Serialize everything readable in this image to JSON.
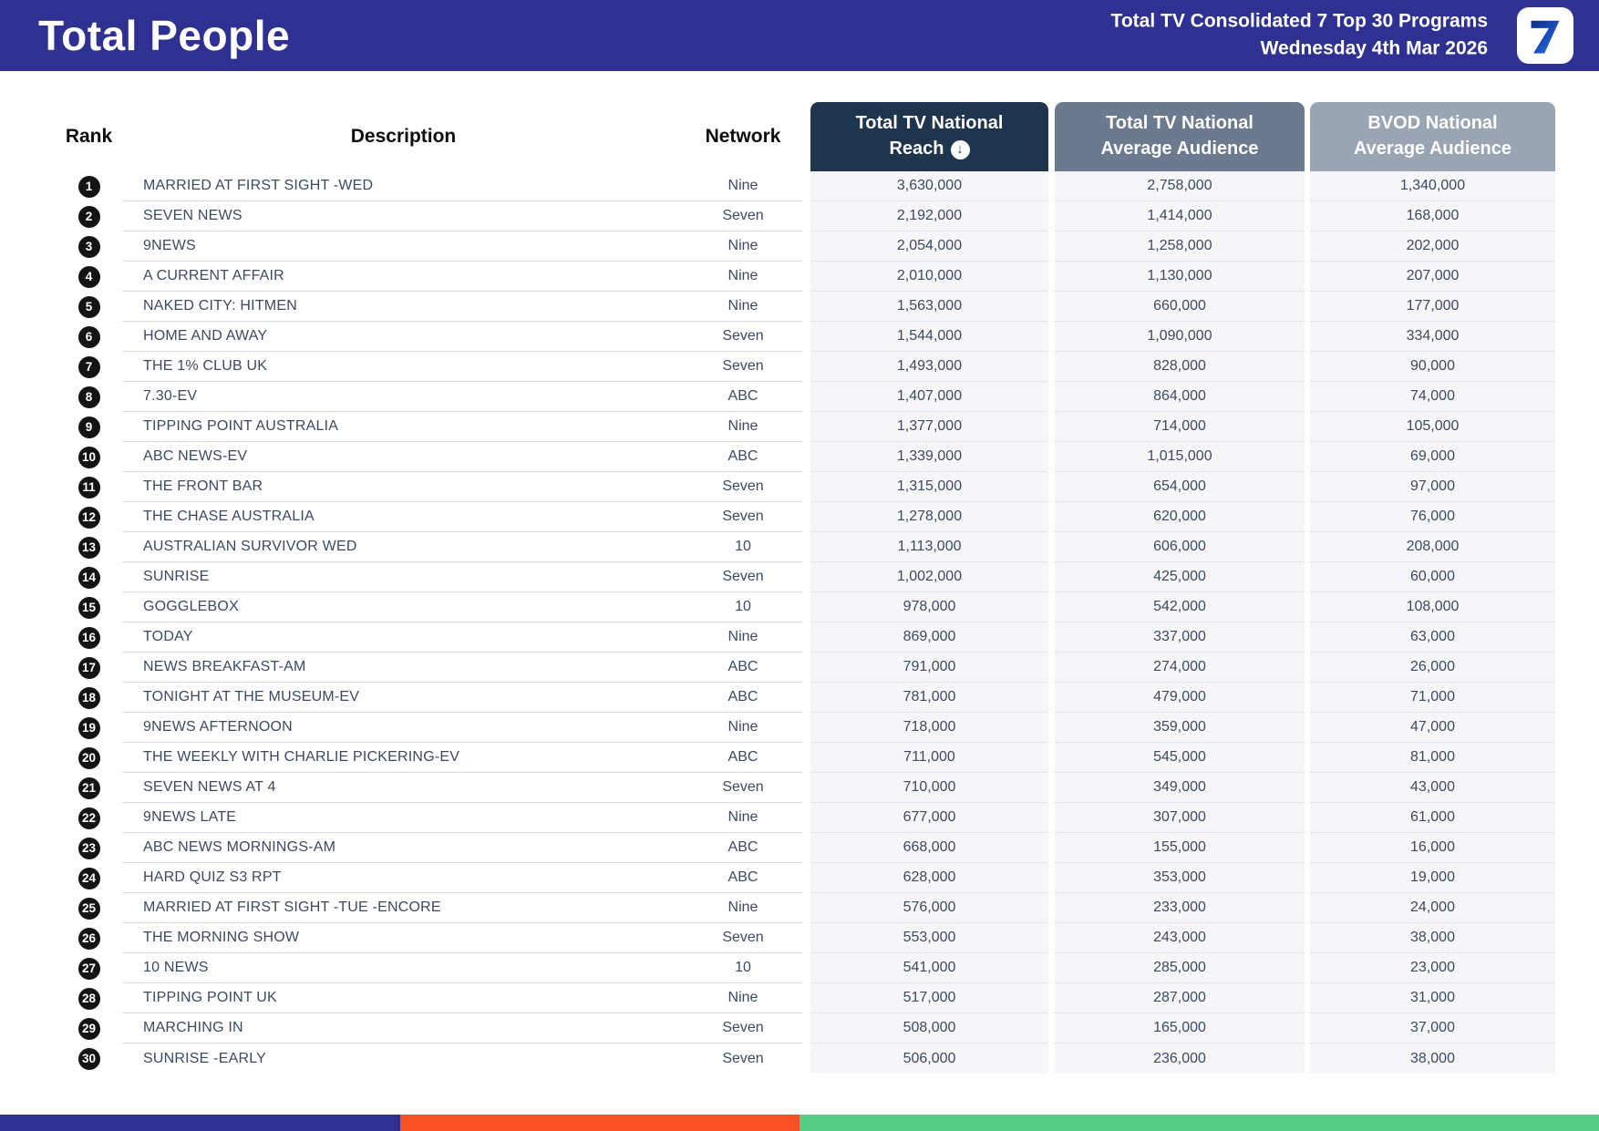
{
  "header": {
    "title": "Total People",
    "subtitle_line1": "Total TV Consolidated 7 Top 30 Programs",
    "subtitle_line2": "Wednesday 4th Mar 2026",
    "logo": "seven-network-7-logo"
  },
  "colors": {
    "banner_bg": "#2e3192",
    "reach_header_bg": "#1f344d",
    "avg_header_bg": "#6b7a8e",
    "bvod_header_bg": "#9aa5b4",
    "row_text": "#3c4a61",
    "rank_badge_bg": "#141414",
    "numeric_cell_bg": "#f6f6f8"
  },
  "table": {
    "columns": {
      "rank": "Rank",
      "description": "Description",
      "network": "Network",
      "reach_line1": "Total TV National",
      "reach_line2": "Reach",
      "reach_sort_icon": "circle-down-arrow",
      "avg_line1": "Total TV National",
      "avg_line2": "Average Audience",
      "bvod_line1": "BVOD National",
      "bvod_line2": "Average Audience"
    },
    "rows": [
      {
        "rank": "1",
        "description": "MARRIED AT FIRST SIGHT -WED",
        "network": "Nine",
        "reach": "3,630,000",
        "avg": "2,758,000",
        "bvod": "1,340,000"
      },
      {
        "rank": "2",
        "description": "SEVEN NEWS",
        "network": "Seven",
        "reach": "2,192,000",
        "avg": "1,414,000",
        "bvod": "168,000"
      },
      {
        "rank": "3",
        "description": "9NEWS",
        "network": "Nine",
        "reach": "2,054,000",
        "avg": "1,258,000",
        "bvod": "202,000"
      },
      {
        "rank": "4",
        "description": "A CURRENT AFFAIR",
        "network": "Nine",
        "reach": "2,010,000",
        "avg": "1,130,000",
        "bvod": "207,000"
      },
      {
        "rank": "5",
        "description": "NAKED CITY: HITMEN",
        "network": "Nine",
        "reach": "1,563,000",
        "avg": "660,000",
        "bvod": "177,000"
      },
      {
        "rank": "6",
        "description": "HOME AND AWAY",
        "network": "Seven",
        "reach": "1,544,000",
        "avg": "1,090,000",
        "bvod": "334,000"
      },
      {
        "rank": "7",
        "description": "THE 1% CLUB UK",
        "network": "Seven",
        "reach": "1,493,000",
        "avg": "828,000",
        "bvod": "90,000"
      },
      {
        "rank": "8",
        "description": "7.30-EV",
        "network": "ABC",
        "reach": "1,407,000",
        "avg": "864,000",
        "bvod": "74,000"
      },
      {
        "rank": "9",
        "description": "TIPPING POINT AUSTRALIA",
        "network": "Nine",
        "reach": "1,377,000",
        "avg": "714,000",
        "bvod": "105,000"
      },
      {
        "rank": "10",
        "description": "ABC NEWS-EV",
        "network": "ABC",
        "reach": "1,339,000",
        "avg": "1,015,000",
        "bvod": "69,000"
      },
      {
        "rank": "11",
        "description": "THE FRONT BAR",
        "network": "Seven",
        "reach": "1,315,000",
        "avg": "654,000",
        "bvod": "97,000"
      },
      {
        "rank": "12",
        "description": "THE CHASE AUSTRALIA",
        "network": "Seven",
        "reach": "1,278,000",
        "avg": "620,000",
        "bvod": "76,000"
      },
      {
        "rank": "13",
        "description": "AUSTRALIAN SURVIVOR WED",
        "network": "10",
        "reach": "1,113,000",
        "avg": "606,000",
        "bvod": "208,000"
      },
      {
        "rank": "14",
        "description": "SUNRISE",
        "network": "Seven",
        "reach": "1,002,000",
        "avg": "425,000",
        "bvod": "60,000"
      },
      {
        "rank": "15",
        "description": "GOGGLEBOX",
        "network": "10",
        "reach": "978,000",
        "avg": "542,000",
        "bvod": "108,000"
      },
      {
        "rank": "16",
        "description": "TODAY",
        "network": "Nine",
        "reach": "869,000",
        "avg": "337,000",
        "bvod": "63,000"
      },
      {
        "rank": "17",
        "description": "NEWS BREAKFAST-AM",
        "network": "ABC",
        "reach": "791,000",
        "avg": "274,000",
        "bvod": "26,000"
      },
      {
        "rank": "18",
        "description": "TONIGHT AT THE MUSEUM-EV",
        "network": "ABC",
        "reach": "781,000",
        "avg": "479,000",
        "bvod": "71,000"
      },
      {
        "rank": "19",
        "description": "9NEWS AFTERNOON",
        "network": "Nine",
        "reach": "718,000",
        "avg": "359,000",
        "bvod": "47,000"
      },
      {
        "rank": "20",
        "description": "THE WEEKLY WITH CHARLIE PICKERING-EV",
        "network": "ABC",
        "reach": "711,000",
        "avg": "545,000",
        "bvod": "81,000"
      },
      {
        "rank": "21",
        "description": "SEVEN NEWS AT 4",
        "network": "Seven",
        "reach": "710,000",
        "avg": "349,000",
        "bvod": "43,000"
      },
      {
        "rank": "22",
        "description": "9NEWS LATE",
        "network": "Nine",
        "reach": "677,000",
        "avg": "307,000",
        "bvod": "61,000"
      },
      {
        "rank": "23",
        "description": "ABC NEWS MORNINGS-AM",
        "network": "ABC",
        "reach": "668,000",
        "avg": "155,000",
        "bvod": "16,000"
      },
      {
        "rank": "24",
        "description": "HARD QUIZ S3 RPT",
        "network": "ABC",
        "reach": "628,000",
        "avg": "353,000",
        "bvod": "19,000"
      },
      {
        "rank": "25",
        "description": "MARRIED AT FIRST SIGHT -TUE -ENCORE",
        "network": "Nine",
        "reach": "576,000",
        "avg": "233,000",
        "bvod": "24,000"
      },
      {
        "rank": "26",
        "description": "THE MORNING SHOW",
        "network": "Seven",
        "reach": "553,000",
        "avg": "243,000",
        "bvod": "38,000"
      },
      {
        "rank": "27",
        "description": "10 NEWS",
        "network": "10",
        "reach": "541,000",
        "avg": "285,000",
        "bvod": "23,000"
      },
      {
        "rank": "28",
        "description": "TIPPING POINT UK",
        "network": "Nine",
        "reach": "517,000",
        "avg": "287,000",
        "bvod": "31,000"
      },
      {
        "rank": "29",
        "description": "MARCHING IN",
        "network": "Seven",
        "reach": "508,000",
        "avg": "165,000",
        "bvod": "37,000"
      },
      {
        "rank": "30",
        "description": "SUNRISE -EARLY",
        "network": "Seven",
        "reach": "506,000",
        "avg": "236,000",
        "bvod": "38,000"
      }
    ]
  },
  "footer": {
    "segments": [
      {
        "name": "blue",
        "color": "#2e3192",
        "width_pct": 25
      },
      {
        "name": "orange",
        "color": "#fb4f26",
        "width_pct": 25
      },
      {
        "name": "green",
        "color": "#55cd86",
        "width_pct": 50
      }
    ]
  }
}
